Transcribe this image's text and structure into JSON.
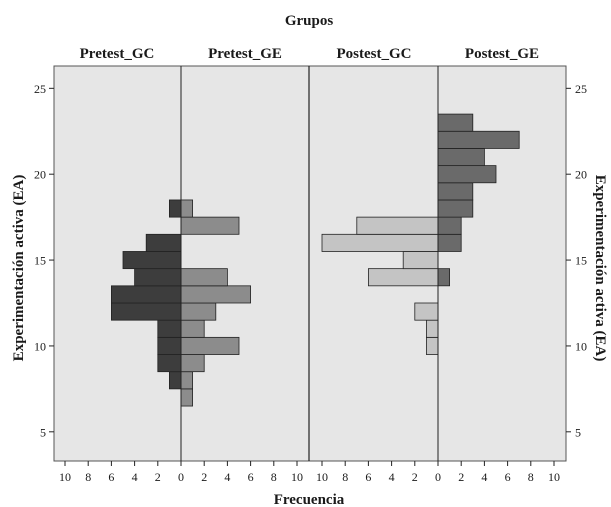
{
  "chart_data": {
    "type": "bar",
    "orientation": "back-to-back population pyramids",
    "title": "Grupos",
    "xlabel": "Frecuencia",
    "ylabel": "Experimentación activa (EA)",
    "ylabel_right": "Experimentación activa (EA)",
    "ylim": [
      3.3,
      26.3
    ],
    "yticks": [
      "5",
      "10",
      "15",
      "20",
      "25"
    ],
    "xlim": [
      0,
      10
    ],
    "xticks": [
      "10",
      "8",
      "6",
      "4",
      "2",
      "0",
      "2",
      "4",
      "6",
      "8",
      "10"
    ],
    "grid": false,
    "panels": [
      {
        "name": "Pretest_GC",
        "color": "#3d3d3d",
        "direction": "left",
        "bins": [
          {
            "y": 8,
            "count": 1
          },
          {
            "y": 9,
            "count": 2
          },
          {
            "y": 10,
            "count": 2
          },
          {
            "y": 11,
            "count": 2
          },
          {
            "y": 12,
            "count": 6
          },
          {
            "y": 13,
            "count": 6
          },
          {
            "y": 14,
            "count": 4
          },
          {
            "y": 15,
            "count": 5
          },
          {
            "y": 16,
            "count": 3
          },
          {
            "y": 18,
            "count": 1
          }
        ]
      },
      {
        "name": "Pretest_GE",
        "color": "#8c8c8c",
        "direction": "right",
        "bins": [
          {
            "y": 7,
            "count": 1
          },
          {
            "y": 8,
            "count": 1
          },
          {
            "y": 9,
            "count": 2
          },
          {
            "y": 10,
            "count": 5
          },
          {
            "y": 11,
            "count": 2
          },
          {
            "y": 12,
            "count": 3
          },
          {
            "y": 13,
            "count": 6
          },
          {
            "y": 14,
            "count": 4
          },
          {
            "y": 17,
            "count": 5
          },
          {
            "y": 18,
            "count": 1
          }
        ]
      },
      {
        "name": "Postest_GC",
        "color": "#c4c4c4",
        "direction": "left",
        "bins": [
          {
            "y": 10,
            "count": 1
          },
          {
            "y": 11,
            "count": 1
          },
          {
            "y": 12,
            "count": 2
          },
          {
            "y": 14,
            "count": 6
          },
          {
            "y": 15,
            "count": 3
          },
          {
            "y": 16,
            "count": 10
          },
          {
            "y": 17,
            "count": 7
          }
        ]
      },
      {
        "name": "Postest_GE",
        "color": "#6a6a6a",
        "direction": "right",
        "bins": [
          {
            "y": 14,
            "count": 1
          },
          {
            "y": 16,
            "count": 2
          },
          {
            "y": 17,
            "count": 2
          },
          {
            "y": 18,
            "count": 3
          },
          {
            "y": 19,
            "count": 3
          },
          {
            "y": 20,
            "count": 5
          },
          {
            "y": 21,
            "count": 4
          },
          {
            "y": 22,
            "count": 7
          },
          {
            "y": 23,
            "count": 3
          }
        ]
      }
    ]
  }
}
